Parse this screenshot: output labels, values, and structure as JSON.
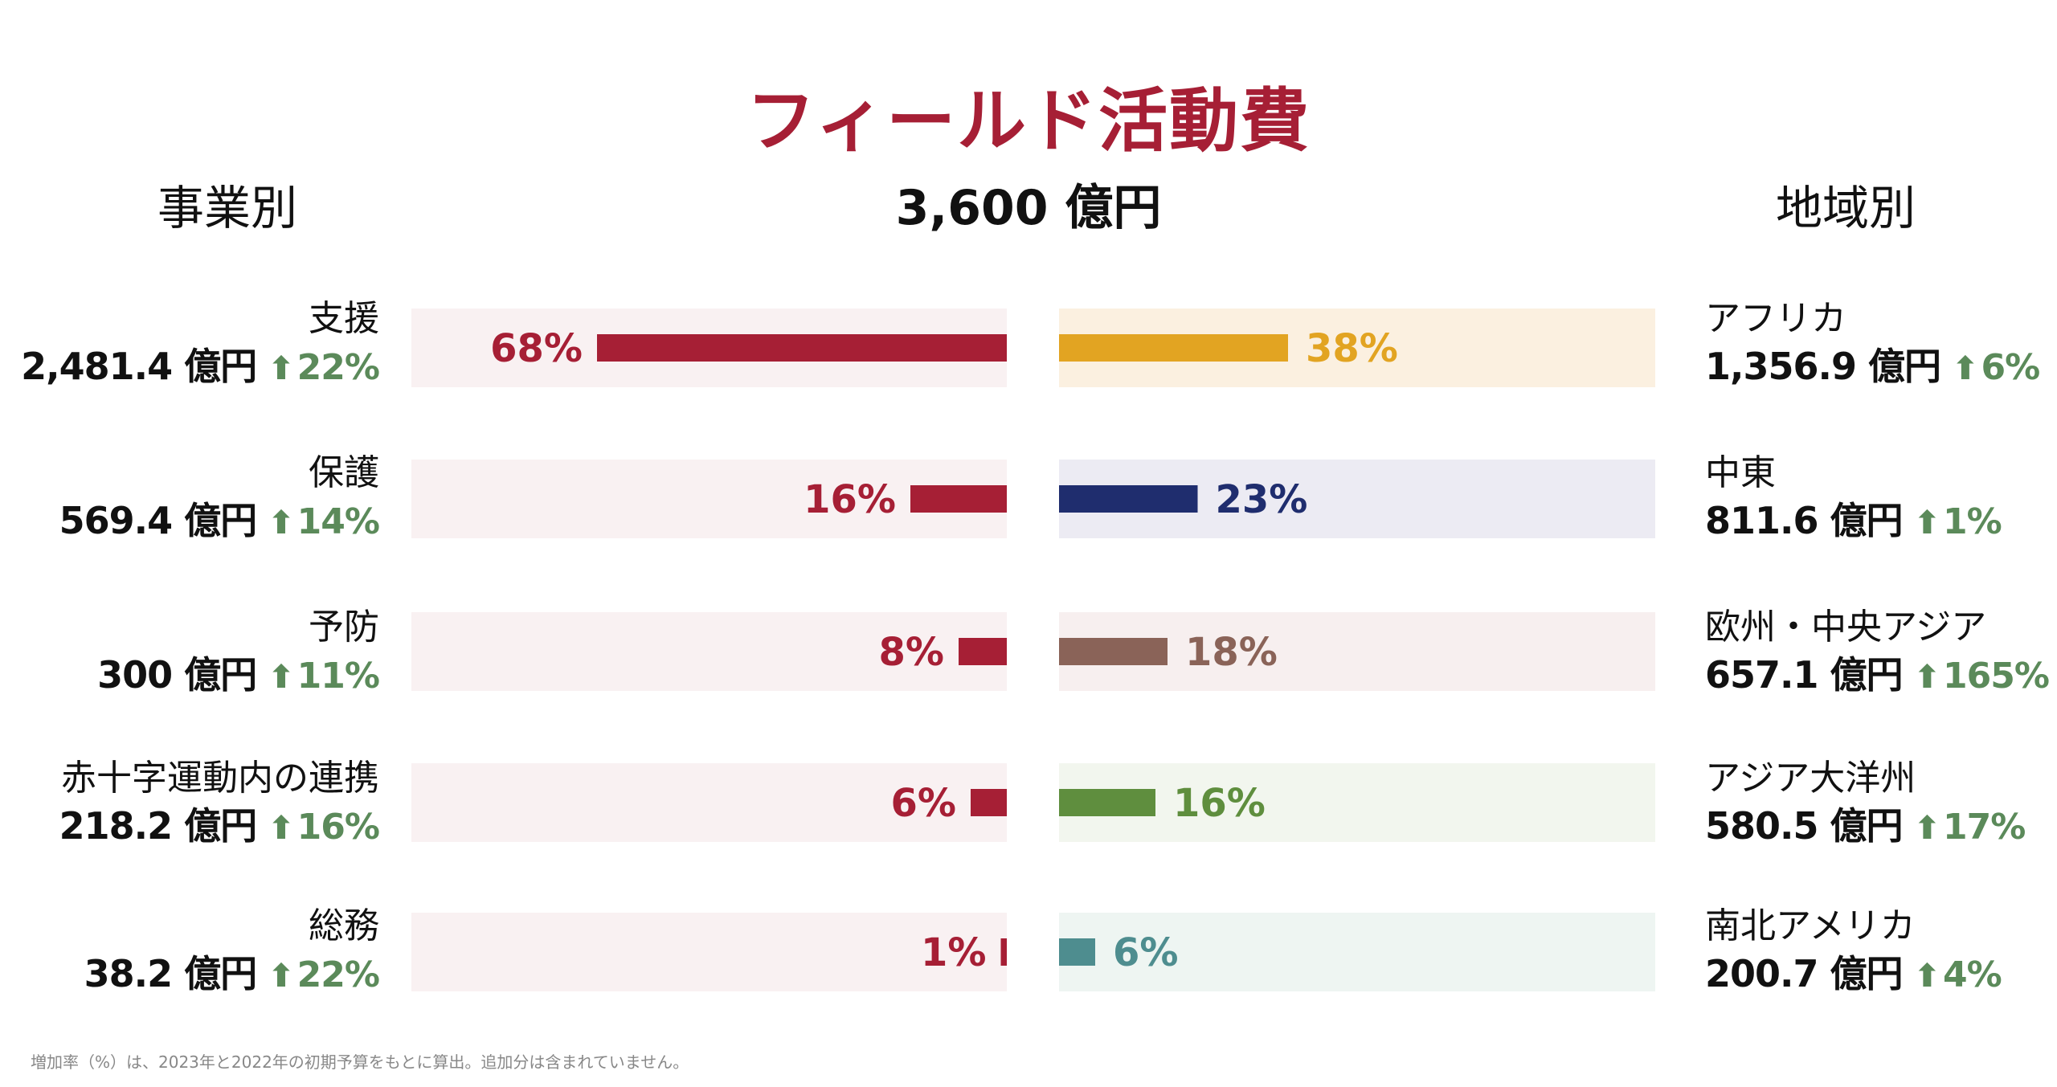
{
  "title": "フィールド活動費",
  "total": "3,600 億円",
  "left_section": {
    "label": "事業別"
  },
  "right_section": {
    "label": "地域別"
  },
  "up_arrow_icon": "up-arrow-icon",
  "left_items": [
    {
      "name": "支援",
      "amount": "2,481.4 億円",
      "change": "22%",
      "pct_label": "68%"
    },
    {
      "name": "保護",
      "amount": "569.4 億円",
      "change": "14%",
      "pct_label": "16%"
    },
    {
      "name": "予防",
      "amount": "300 億円",
      "change": "11%",
      "pct_label": "8%"
    },
    {
      "name": "赤十字運動内の連携",
      "amount": "218.2 億円",
      "change": "16%",
      "pct_label": "6%"
    },
    {
      "name": "総務",
      "amount": "38.2 億円",
      "change": "22%",
      "pct_label": "1%"
    }
  ],
  "right_items": [
    {
      "name": "アフリカ",
      "amount": "1,356.9 億円",
      "change": "6%",
      "pct_label": "38%"
    },
    {
      "name": "中東",
      "amount": "811.6 億円",
      "change": "1%",
      "pct_label": "23%"
    },
    {
      "name": "欧州・中央アジア",
      "amount": "657.1 億円",
      "change": "165%",
      "pct_label": "18%"
    },
    {
      "name": "アジア大洋州",
      "amount": "580.5 億円",
      "change": "17%",
      "pct_label": "16%"
    },
    {
      "name": "南北アメリカ",
      "amount": "200.7 億円",
      "change": "4%",
      "pct_label": "6%"
    }
  ],
  "footnote": "増加率（%）は、2023年と2022年の初期予算をもとに算出。追加分は含まれていません。",
  "colors": {
    "title": "#a61f35",
    "left_bar": "#a61f35",
    "left_track": "#f9f1f2",
    "change_green": "#5b8a5a",
    "right_bars": [
      "#e2a422",
      "#1f2d6e",
      "#8a6358",
      "#5f8e3e",
      "#4e8d8f"
    ],
    "right_tracks": [
      "#fbf0e0",
      "#ecebf3",
      "#f7efef",
      "#f2f6ee",
      "#eef5f2"
    ]
  },
  "chart_data": [
    {
      "type": "bar",
      "orientation": "horizontal",
      "title": "事業別",
      "categories": [
        "支援",
        "保護",
        "予防",
        "赤十字運動内の連携",
        "総務"
      ],
      "values": [
        68,
        16,
        8,
        6,
        1
      ],
      "unit": "%",
      "amounts_oku_yen": [
        2481.4,
        569.4,
        300,
        218.2,
        38.2
      ],
      "change_pct": [
        22,
        14,
        11,
        16,
        22
      ],
      "xlim": [
        0,
        100
      ]
    },
    {
      "type": "bar",
      "orientation": "horizontal",
      "title": "地域別",
      "categories": [
        "アフリカ",
        "中東",
        "欧州・中央アジア",
        "アジア大洋州",
        "南北アメリカ"
      ],
      "values": [
        38,
        23,
        18,
        16,
        6
      ],
      "unit": "%",
      "amounts_oku_yen": [
        1356.9,
        811.6,
        657.1,
        580.5,
        200.7
      ],
      "change_pct": [
        6,
        1,
        165,
        17,
        4
      ],
      "xlim": [
        0,
        100
      ]
    }
  ]
}
